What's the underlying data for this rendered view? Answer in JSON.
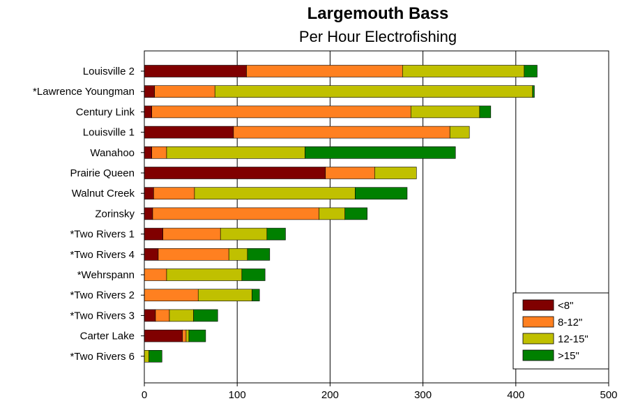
{
  "chart_data": {
    "type": "bar",
    "orientation": "horizontal",
    "stacked": true,
    "title": "Largemouth Bass",
    "subtitle": "Per Hour Electrofishing",
    "xlabel": "",
    "ylabel": "",
    "xlim": [
      0,
      500
    ],
    "xticks": [
      0,
      100,
      200,
      300,
      400,
      500
    ],
    "grid": true,
    "legend_position": "bottom-right",
    "categories": [
      "Louisville 2",
      "*Lawrence Youngman",
      "Century Link",
      "Louisville 1",
      "Wanahoo",
      "Prairie Queen",
      "Walnut Creek",
      "Zorinsky",
      "*Two Rivers 1",
      "*Two Rivers 4",
      "*Wehrspann",
      "*Two Rivers 2",
      "*Two Rivers 3",
      "Carter Lake",
      "*Two Rivers 6"
    ],
    "series": [
      {
        "name": "<8\"",
        "color": "#800000",
        "values": [
          110,
          11,
          8,
          96,
          8,
          195,
          10,
          9,
          20,
          15,
          0,
          0,
          12,
          41,
          0
        ]
      },
      {
        "name": "8-12\"",
        "color": "#ff8020",
        "values": [
          168,
          65,
          279,
          233,
          16,
          53,
          44,
          179,
          62,
          76,
          24,
          58,
          15,
          4,
          0
        ]
      },
      {
        "name": "12-15\"",
        "color": "#c0c000",
        "values": [
          131,
          342,
          74,
          21,
          149,
          45,
          173,
          28,
          50,
          20,
          81,
          58,
          26,
          3,
          5
        ]
      },
      {
        "name": ">15\"",
        "color": "#008000",
        "values": [
          14,
          2,
          12,
          0,
          162,
          0,
          56,
          24,
          20,
          24,
          25,
          8,
          26,
          18,
          14
        ]
      }
    ]
  }
}
